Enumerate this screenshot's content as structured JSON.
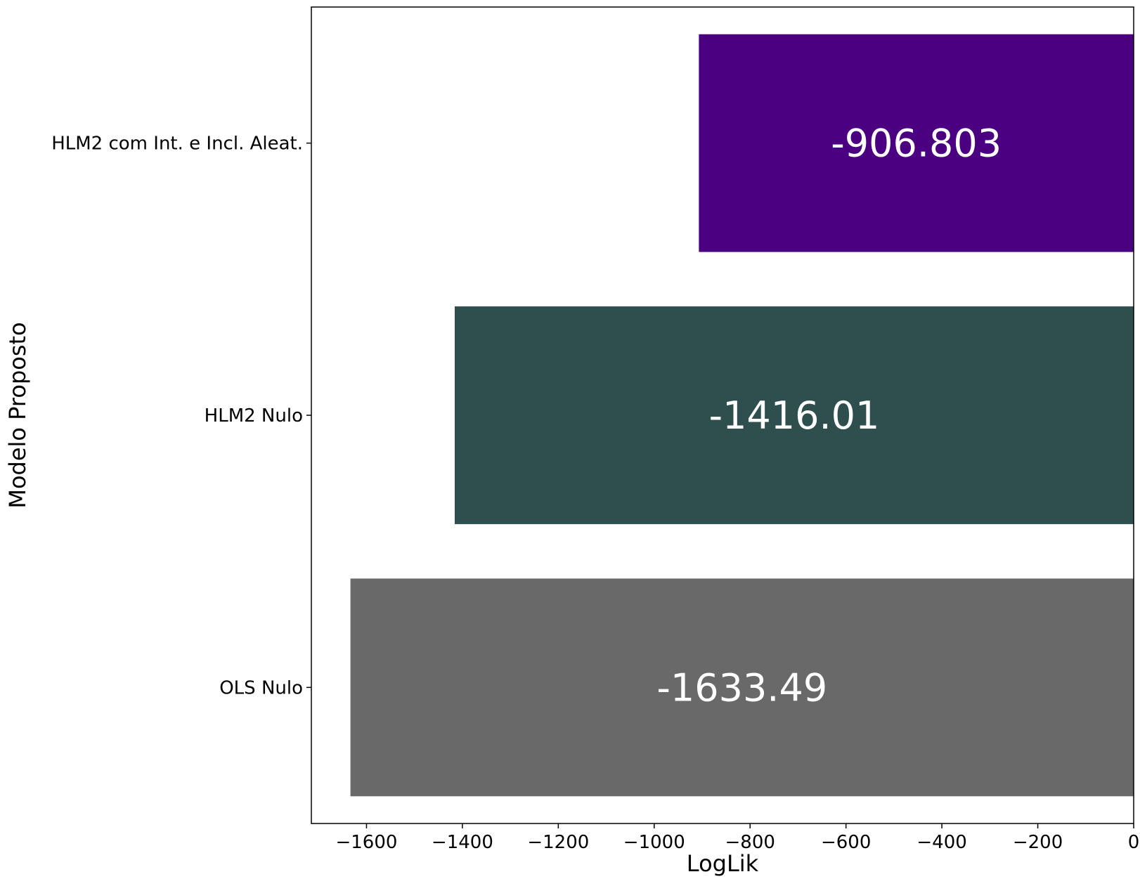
{
  "chart_data": {
    "type": "bar",
    "orientation": "horizontal",
    "xlabel": "LogLik",
    "ylabel": "Modelo Proposto",
    "xlim": [
      -1715,
      0
    ],
    "x_ticks": [
      -1600,
      -1400,
      -1200,
      -1000,
      -800,
      -600,
      -400,
      -200,
      0
    ],
    "x_tick_labels": [
      "−1600",
      "−1400",
      "−1200",
      "−1000",
      "−800",
      "−600",
      "−400",
      "−200",
      "0"
    ],
    "grid": false,
    "categories": [
      "HLM2 com Int. e Incl. Aleat.",
      "HLM2 Nulo",
      "OLS Nulo"
    ],
    "values": [
      -906.803,
      -1416.01,
      -1633.49
    ],
    "data_labels": [
      "-906.803",
      "-1416.01",
      "-1633.49"
    ],
    "colors": [
      "#4b0082",
      "#2f4f4f",
      "#696969"
    ]
  }
}
